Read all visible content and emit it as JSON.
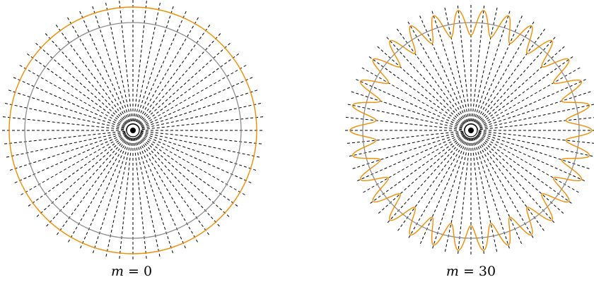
{
  "panels": [
    {
      "id": "left",
      "caption_var": "m",
      "caption_eq": " = 0",
      "m": 0,
      "spokes": 30,
      "colors": {
        "reference_circle": "#8c8c8c",
        "deformed_curve": "#f28c00",
        "spokes": "#000000",
        "center": "#000000"
      }
    },
    {
      "id": "right",
      "caption_var": "m",
      "caption_eq": " = 30",
      "m": 30,
      "spokes": 30,
      "colors": {
        "reference_circle": "#8c8c8c",
        "deformed_curve": "#f28c00",
        "spokes": "#000000",
        "center": "#000000"
      }
    }
  ]
}
